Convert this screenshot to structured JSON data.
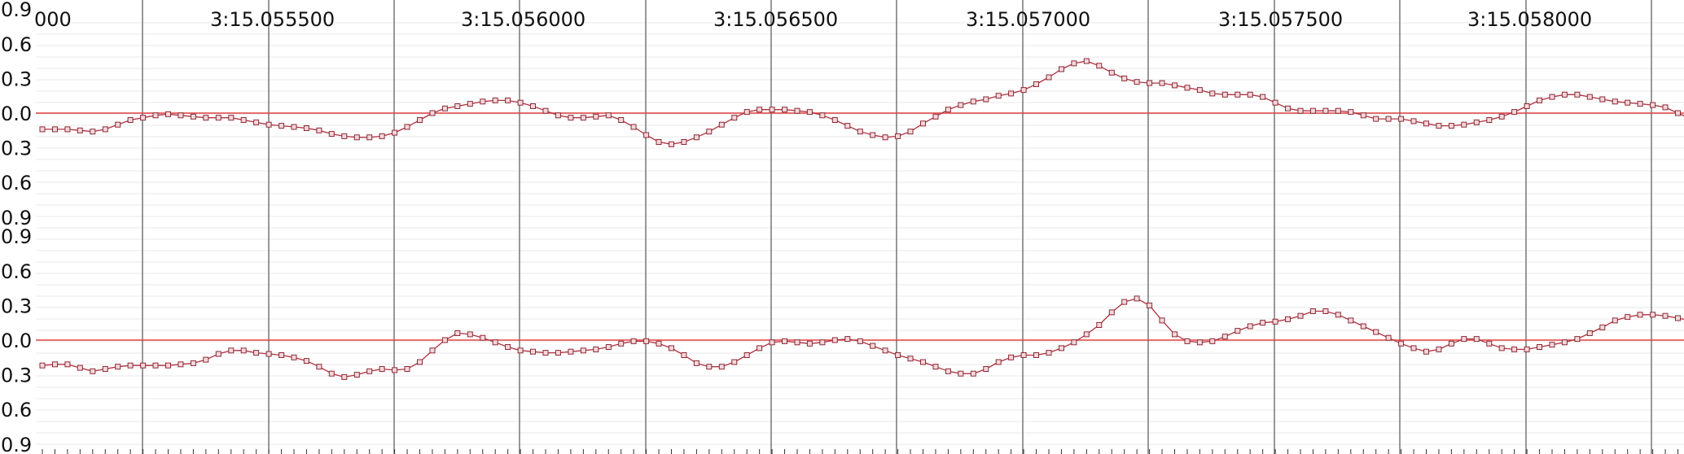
{
  "timeline": {
    "tick_labels": [
      "000",
      "3:15.055500",
      "3:15.056000",
      "3:15.056500",
      "3:15.057000",
      "3:15.057500",
      "3:15.058000"
    ]
  },
  "colors": {
    "background": "#ffffff",
    "waveform": "#b03040",
    "sample_marker": "#8a2a34",
    "zero_line": "#e04040",
    "grid_major": "#555555",
    "grid_minor": "#e8e8e8"
  },
  "chart_data": [
    {
      "type": "line",
      "name_hint": "channel-1",
      "ylim": [
        -1.0,
        1.0
      ],
      "y_tick_labels": [
        "0.9",
        "0.6",
        "0.3",
        "0.0",
        "0.3",
        "0.6",
        "0.9"
      ],
      "samples": [
        -0.14,
        -0.14,
        -0.14,
        -0.15,
        -0.16,
        -0.14,
        -0.1,
        -0.06,
        -0.04,
        -0.02,
        -0.01,
        -0.02,
        -0.03,
        -0.04,
        -0.04,
        -0.04,
        -0.06,
        -0.08,
        -0.1,
        -0.11,
        -0.12,
        -0.13,
        -0.15,
        -0.18,
        -0.2,
        -0.21,
        -0.21,
        -0.2,
        -0.17,
        -0.12,
        -0.06,
        0.0,
        0.04,
        0.06,
        0.08,
        0.1,
        0.11,
        0.11,
        0.09,
        0.06,
        0.02,
        -0.02,
        -0.04,
        -0.04,
        -0.03,
        -0.02,
        -0.06,
        -0.12,
        -0.19,
        -0.25,
        -0.27,
        -0.25,
        -0.21,
        -0.16,
        -0.1,
        -0.04,
        0.01,
        0.03,
        0.03,
        0.03,
        0.02,
        0.01,
        -0.02,
        -0.06,
        -0.11,
        -0.16,
        -0.19,
        -0.21,
        -0.2,
        -0.16,
        -0.09,
        -0.03,
        0.03,
        0.07,
        0.1,
        0.12,
        0.15,
        0.17,
        0.2,
        0.25,
        0.31,
        0.38,
        0.43,
        0.45,
        0.41,
        0.35,
        0.3,
        0.27,
        0.26,
        0.26,
        0.24,
        0.22,
        0.2,
        0.17,
        0.16,
        0.16,
        0.16,
        0.14,
        0.09,
        0.04,
        0.02,
        0.02,
        0.02,
        0.02,
        0.01,
        -0.02,
        -0.05,
        -0.05,
        -0.05,
        -0.07,
        -0.09,
        -0.11,
        -0.11,
        -0.1,
        -0.08,
        -0.06,
        -0.03,
        0.01,
        0.06,
        0.11,
        0.14,
        0.16,
        0.16,
        0.14,
        0.12,
        0.1,
        0.09,
        0.08,
        0.07,
        0.05,
        0.0,
        -0.05,
        -0.07,
        -0.09,
        -0.12,
        -0.15,
        -0.17,
        -0.18,
        -0.17,
        -0.15,
        -0.12,
        -0.1,
        -0.09,
        -0.08,
        -0.06,
        -0.03,
        0.0,
        0.03,
        0.04,
        0.04,
        0.03,
        0.02,
        0.01,
        -0.01,
        -0.02,
        0.01,
        0.06,
        0.1,
        0.12,
        0.14,
        0.14
      ]
    },
    {
      "type": "line",
      "name_hint": "channel-2",
      "ylim": [
        -1.0,
        1.0
      ],
      "y_tick_labels": [
        "0.9",
        "0.6",
        "0.3",
        "0.0",
        "0.3",
        "0.6",
        "0.9"
      ],
      "samples": [
        -0.22,
        -0.21,
        -0.21,
        -0.24,
        -0.27,
        -0.25,
        -0.23,
        -0.22,
        -0.22,
        -0.22,
        -0.22,
        -0.21,
        -0.2,
        -0.17,
        -0.12,
        -0.09,
        -0.09,
        -0.11,
        -0.12,
        -0.13,
        -0.15,
        -0.18,
        -0.23,
        -0.29,
        -0.32,
        -0.3,
        -0.27,
        -0.25,
        -0.26,
        -0.25,
        -0.19,
        -0.09,
        0.0,
        0.06,
        0.05,
        0.02,
        -0.02,
        -0.06,
        -0.09,
        -0.1,
        -0.11,
        -0.11,
        -0.1,
        -0.09,
        -0.08,
        -0.06,
        -0.03,
        -0.01,
        -0.01,
        -0.03,
        -0.07,
        -0.13,
        -0.2,
        -0.23,
        -0.23,
        -0.19,
        -0.13,
        -0.07,
        -0.02,
        -0.01,
        -0.02,
        -0.03,
        -0.02,
        0.0,
        0.01,
        -0.01,
        -0.05,
        -0.09,
        -0.13,
        -0.16,
        -0.19,
        -0.23,
        -0.27,
        -0.29,
        -0.29,
        -0.25,
        -0.19,
        -0.15,
        -0.13,
        -0.13,
        -0.11,
        -0.07,
        -0.02,
        0.05,
        0.13,
        0.24,
        0.33,
        0.36,
        0.3,
        0.17,
        0.05,
        -0.01,
        -0.02,
        -0.01,
        0.03,
        0.08,
        0.12,
        0.15,
        0.16,
        0.18,
        0.21,
        0.25,
        0.25,
        0.22,
        0.17,
        0.12,
        0.07,
        0.02,
        -0.03,
        -0.07,
        -0.1,
        -0.08,
        -0.03,
        0.01,
        0.01,
        -0.03,
        -0.07,
        -0.08,
        -0.08,
        -0.06,
        -0.04,
        -0.02,
        0.01,
        0.06,
        0.11,
        0.17,
        0.2,
        0.22,
        0.22,
        0.21,
        0.19,
        0.17,
        0.16,
        0.15,
        0.14,
        0.11,
        0.05,
        -0.01,
        0.0,
        0.04,
        0.06,
        0.07,
        0.06,
        0.04,
        0.01,
        -0.01,
        -0.02,
        -0.02,
        -0.01,
        -0.01,
        -0.03,
        -0.04,
        -0.04,
        0.0,
        0.05,
        0.1,
        0.12,
        0.12,
        0.1,
        0.08,
        0.05,
        0.0,
        -0.06,
        -0.08,
        -0.08,
        -0.06,
        -0.02
      ]
    }
  ]
}
